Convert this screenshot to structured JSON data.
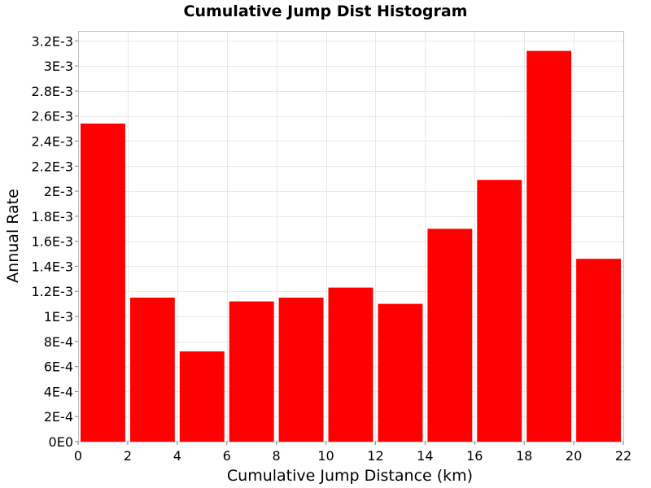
{
  "chart_data": {
    "type": "bar",
    "title": "Cumulative Jump Dist Histogram",
    "xlabel": "Cumulative Jump Distance (km)",
    "ylabel": "Annual Rate",
    "xlim": [
      0,
      22
    ],
    "ylim": [
      0,
      0.00328
    ],
    "x_ticks": [
      0,
      2,
      4,
      6,
      8,
      10,
      12,
      14,
      16,
      18,
      20,
      22
    ],
    "x_tick_labels": [
      "0",
      "2",
      "4",
      "6",
      "8",
      "10",
      "12",
      "14",
      "16",
      "18",
      "20",
      "22"
    ],
    "y_ticks": [
      0,
      0.0002,
      0.0004,
      0.0006,
      0.0008,
      0.001,
      0.0012,
      0.0014,
      0.0016,
      0.0018,
      0.002,
      0.0022,
      0.0024,
      0.0026,
      0.0028,
      0.003,
      0.0032
    ],
    "y_tick_labels": [
      "0E0",
      "2E-4",
      "4E-4",
      "6E-4",
      "8E-4",
      "1E-3",
      "1.2E-3",
      "1.4E-3",
      "1.6E-3",
      "1.8E-3",
      "2E-3",
      "2.2E-3",
      "2.4E-3",
      "2.6E-3",
      "2.8E-3",
      "3E-3",
      "3.2E-3"
    ],
    "bins": [
      {
        "x_start": 0,
        "x_end": 2,
        "value": 0.00254
      },
      {
        "x_start": 2,
        "x_end": 4,
        "value": 0.00115
      },
      {
        "x_start": 4,
        "x_end": 6,
        "value": 0.00072
      },
      {
        "x_start": 6,
        "x_end": 8,
        "value": 0.00112
      },
      {
        "x_start": 8,
        "x_end": 10,
        "value": 0.00115
      },
      {
        "x_start": 10,
        "x_end": 12,
        "value": 0.00123
      },
      {
        "x_start": 12,
        "x_end": 14,
        "value": 0.0011
      },
      {
        "x_start": 14,
        "x_end": 16,
        "value": 0.0017
      },
      {
        "x_start": 16,
        "x_end": 18,
        "value": 0.00209
      },
      {
        "x_start": 18,
        "x_end": 20,
        "value": 0.00312
      },
      {
        "x_start": 20,
        "x_end": 22,
        "value": 0.00146
      }
    ],
    "bar_color": "#ff0000",
    "grid": true,
    "legend": "none"
  }
}
